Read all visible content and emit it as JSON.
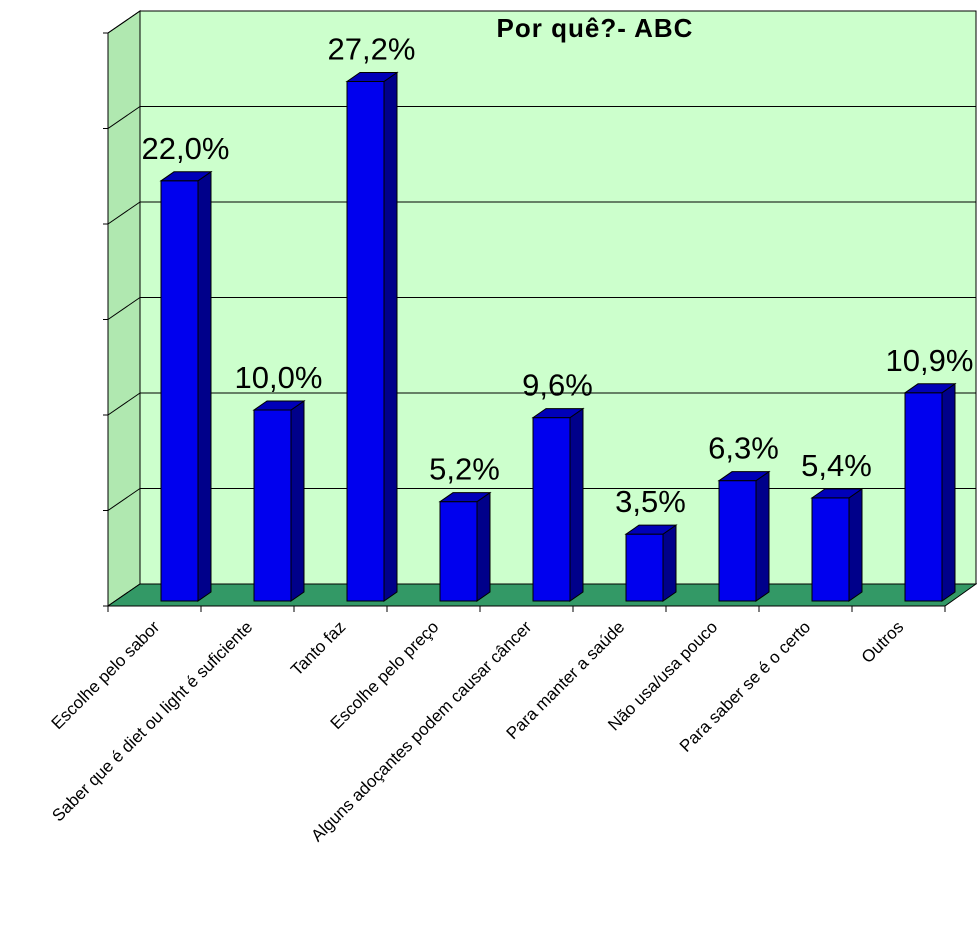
{
  "chart_data": {
    "type": "bar",
    "title": "Por quê?- ABC",
    "xlabel": "",
    "ylabel": "",
    "ylim": [
      0,
      30
    ],
    "grid": true,
    "legend": "none",
    "categories": [
      "Escolhe pelo sabor",
      "Saber que é diet ou light é suficiente",
      "Tanto faz",
      "Escolhe pelo preço",
      "Alguns adoçantes podem causar câncer",
      "Para manter a saúde",
      "Não usa/usa pouco",
      "Para saber se é o certo",
      "Outros"
    ],
    "values": [
      22.0,
      10.0,
      27.2,
      5.2,
      9.6,
      3.5,
      6.3,
      5.4,
      10.9
    ],
    "data_labels": [
      "22,0%",
      "10,0%",
      "27,2%",
      "5,2%",
      "9,6%",
      "3,5%",
      "6,3%",
      "5,4%",
      "10,9%"
    ],
    "colors": {
      "bar": "#0000ee",
      "bar_side": "#00008a",
      "bar_top": "#0000b8",
      "back_wall": "#ccffcc",
      "side_wall": "#b0e8b0",
      "floor": "#339966",
      "gridline": "#000000"
    }
  }
}
